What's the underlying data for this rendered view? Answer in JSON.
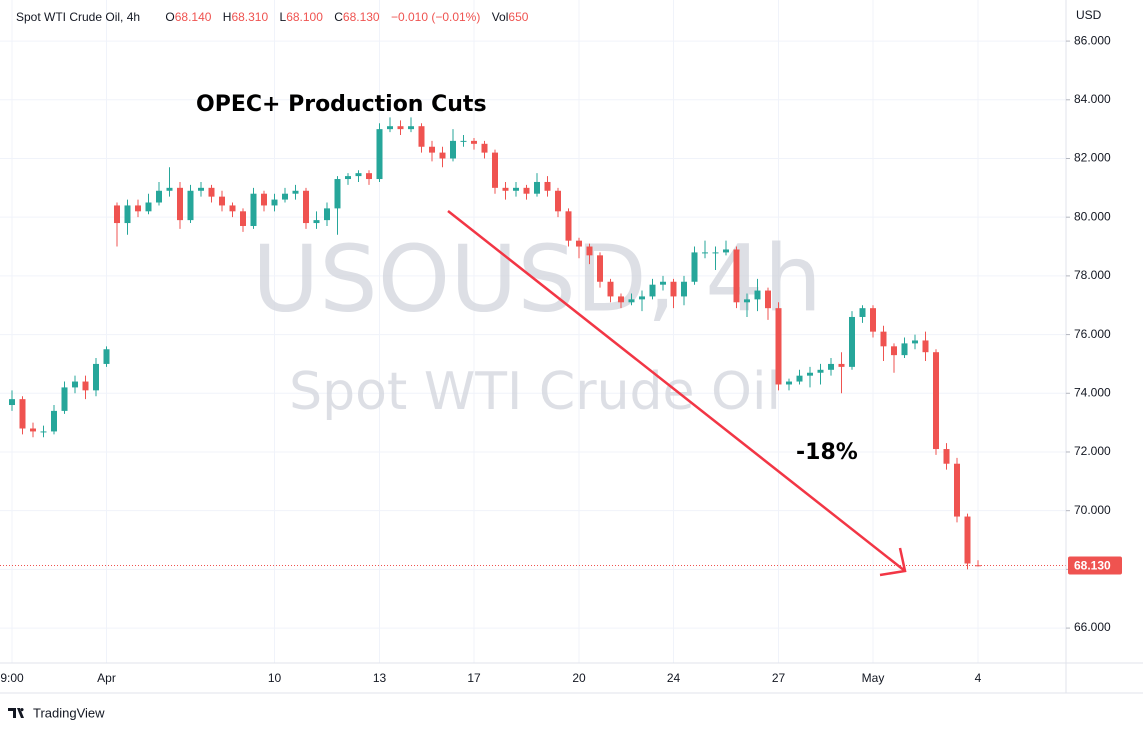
{
  "chart_data": {
    "type": "candlestick",
    "symbol_title": "Spot WTI Crude Oil, 4h",
    "ohlc_legend": [
      {
        "key": "O",
        "value": "68.140"
      },
      {
        "key": "H",
        "value": "68.310"
      },
      {
        "key": "L",
        "value": "68.100"
      },
      {
        "key": "C",
        "value": "68.130"
      }
    ],
    "change": "−0.010 (−0.01%)",
    "volume": {
      "key": "Vol",
      "value": "650"
    },
    "currency": "USD",
    "watermark": [
      "USOUSD, 4h",
      "Spot WTI Crude Oil"
    ],
    "annotations": [
      "OPEC+ Production Cuts",
      "-18%"
    ],
    "branding": "TradingView",
    "up_color": "#26a69a",
    "down_color": "#ef5350",
    "grid": true,
    "ylim": [
      64.81,
      87.4
    ],
    "yticks": [
      {
        "value": 66,
        "label": "66.000"
      },
      {
        "value": 68,
        "label": "68.000"
      },
      {
        "value": 70,
        "label": "70.000"
      },
      {
        "value": 72,
        "label": "72.000"
      },
      {
        "value": 74,
        "label": "74.000"
      },
      {
        "value": 76,
        "label": "76.000"
      },
      {
        "value": 78,
        "label": "78.000"
      },
      {
        "value": 80,
        "label": "80.000"
      },
      {
        "value": 82,
        "label": "82.000"
      },
      {
        "value": 84,
        "label": "84.000"
      },
      {
        "value": 86,
        "label": "86.000"
      }
    ],
    "last_price": {
      "value": 68.13,
      "label": "68.130"
    },
    "categories": [
      "9:00",
      null,
      null,
      null,
      null,
      null,
      null,
      null,
      null,
      "Apr",
      null,
      null,
      null,
      null,
      null,
      null,
      null,
      null,
      null,
      null,
      null,
      null,
      null,
      null,
      null,
      "10",
      null,
      null,
      null,
      null,
      null,
      null,
      null,
      null,
      null,
      "13",
      null,
      null,
      null,
      null,
      null,
      null,
      null,
      null,
      "17",
      null,
      null,
      null,
      null,
      null,
      null,
      null,
      null,
      null,
      "20",
      null,
      null,
      null,
      null,
      null,
      null,
      null,
      null,
      "24",
      null,
      null,
      null,
      null,
      null,
      null,
      null,
      null,
      null,
      "27",
      null,
      null,
      null,
      null,
      null,
      null,
      null,
      null,
      "May",
      null,
      null,
      null,
      null,
      null,
      null,
      null,
      null,
      null,
      "4"
    ],
    "ohlc": [
      [
        73.6,
        74.1,
        73.4,
        73.8
      ],
      [
        73.8,
        73.9,
        72.6,
        72.8
      ],
      [
        72.8,
        73.0,
        72.5,
        72.7
      ],
      [
        72.7,
        72.9,
        72.5,
        72.7
      ],
      [
        72.7,
        73.6,
        72.6,
        73.4
      ],
      [
        73.4,
        74.4,
        73.3,
        74.2
      ],
      [
        74.2,
        74.6,
        74.0,
        74.4
      ],
      [
        74.4,
        74.6,
        73.8,
        74.1
      ],
      [
        74.1,
        75.2,
        73.9,
        75.0
      ],
      [
        75.0,
        75.6,
        74.9,
        75.5
      ],
      [
        80.4,
        80.5,
        79.0,
        79.8
      ],
      [
        79.8,
        80.6,
        79.4,
        80.4
      ],
      [
        80.4,
        80.6,
        80.0,
        80.2
      ],
      [
        80.2,
        80.8,
        80.1,
        80.5
      ],
      [
        80.5,
        81.2,
        80.4,
        80.9
      ],
      [
        80.9,
        81.7,
        80.7,
        81.0
      ],
      [
        81.0,
        81.2,
        79.6,
        79.9
      ],
      [
        79.9,
        81.1,
        79.8,
        80.9
      ],
      [
        80.9,
        81.2,
        80.7,
        81.0
      ],
      [
        81.0,
        81.1,
        80.5,
        80.7
      ],
      [
        80.7,
        80.9,
        80.2,
        80.4
      ],
      [
        80.4,
        80.5,
        80.0,
        80.2
      ],
      [
        80.2,
        80.3,
        79.5,
        79.7
      ],
      [
        79.7,
        81.0,
        79.6,
        80.8
      ],
      [
        80.8,
        80.9,
        80.2,
        80.4
      ],
      [
        80.4,
        80.8,
        80.2,
        80.6
      ],
      [
        80.6,
        81.0,
        80.5,
        80.8
      ],
      [
        80.8,
        81.1,
        80.6,
        80.9
      ],
      [
        80.9,
        81.0,
        79.6,
        79.8
      ],
      [
        79.8,
        80.2,
        79.6,
        79.9
      ],
      [
        79.9,
        80.5,
        79.7,
        80.3
      ],
      [
        80.3,
        81.4,
        79.4,
        81.3
      ],
      [
        81.3,
        81.5,
        81.1,
        81.4
      ],
      [
        81.4,
        81.6,
        81.2,
        81.5
      ],
      [
        81.5,
        81.6,
        81.1,
        81.3
      ],
      [
        81.3,
        83.2,
        81.2,
        83.0
      ],
      [
        83.0,
        83.4,
        82.9,
        83.1
      ],
      [
        83.1,
        83.3,
        82.8,
        83.0
      ],
      [
        83.0,
        83.4,
        82.9,
        83.1
      ],
      [
        83.1,
        83.2,
        82.2,
        82.4
      ],
      [
        82.4,
        82.6,
        81.9,
        82.2
      ],
      [
        82.2,
        82.4,
        81.7,
        82.0
      ],
      [
        82.0,
        83.0,
        81.9,
        82.6
      ],
      [
        82.6,
        82.8,
        82.4,
        82.6
      ],
      [
        82.6,
        82.7,
        82.3,
        82.5
      ],
      [
        82.5,
        82.6,
        82.0,
        82.2
      ],
      [
        82.2,
        82.3,
        80.8,
        81.0
      ],
      [
        81.0,
        81.2,
        80.6,
        80.9
      ],
      [
        80.9,
        81.2,
        80.7,
        81.0
      ],
      [
        81.0,
        81.1,
        80.6,
        80.8
      ],
      [
        80.8,
        81.5,
        80.7,
        81.2
      ],
      [
        81.2,
        81.4,
        80.7,
        80.9
      ],
      [
        80.9,
        81.0,
        80.0,
        80.2
      ],
      [
        80.2,
        80.3,
        79.0,
        79.2
      ],
      [
        79.2,
        79.3,
        78.6,
        79.0
      ],
      [
        79.0,
        79.1,
        78.4,
        78.7
      ],
      [
        78.7,
        78.8,
        77.6,
        77.8
      ],
      [
        77.8,
        77.9,
        77.1,
        77.3
      ],
      [
        77.3,
        77.4,
        76.9,
        77.1
      ],
      [
        77.1,
        77.4,
        77.0,
        77.2
      ],
      [
        77.2,
        77.5,
        76.8,
        77.3
      ],
      [
        77.3,
        77.9,
        77.2,
        77.7
      ],
      [
        77.7,
        78.0,
        77.5,
        77.8
      ],
      [
        77.8,
        77.9,
        76.9,
        77.3
      ],
      [
        77.3,
        78.0,
        77.0,
        77.8
      ],
      [
        77.8,
        79.0,
        77.7,
        78.8
      ],
      [
        78.8,
        79.2,
        78.6,
        78.8
      ],
      [
        78.8,
        79.0,
        78.2,
        78.8
      ],
      [
        78.8,
        79.2,
        78.7,
        78.9
      ],
      [
        78.9,
        79.0,
        76.9,
        77.1
      ],
      [
        77.1,
        77.4,
        76.6,
        77.2
      ],
      [
        77.2,
        77.9,
        76.8,
        77.5
      ],
      [
        77.5,
        77.6,
        76.5,
        76.9
      ],
      [
        76.9,
        77.1,
        74.1,
        74.3
      ],
      [
        74.3,
        74.5,
        74.1,
        74.4
      ],
      [
        74.4,
        74.8,
        74.3,
        74.6
      ],
      [
        74.6,
        74.9,
        74.2,
        74.7
      ],
      [
        74.7,
        75.0,
        74.3,
        74.8
      ],
      [
        74.8,
        75.2,
        74.6,
        75.0
      ],
      [
        75.0,
        75.4,
        74.0,
        74.9
      ],
      [
        74.9,
        76.8,
        74.8,
        76.6
      ],
      [
        76.6,
        77.0,
        76.4,
        76.9
      ],
      [
        76.9,
        77.0,
        75.9,
        76.1
      ],
      [
        76.1,
        76.3,
        75.1,
        75.6
      ],
      [
        75.6,
        75.7,
        74.7,
        75.3
      ],
      [
        75.3,
        75.9,
        75.2,
        75.7
      ],
      [
        75.7,
        76.0,
        75.5,
        75.8
      ],
      [
        75.8,
        76.1,
        75.1,
        75.4
      ],
      [
        75.4,
        75.5,
        71.9,
        72.1
      ],
      [
        72.1,
        72.3,
        71.4,
        71.6
      ],
      [
        71.6,
        71.8,
        69.6,
        69.8
      ],
      [
        69.8,
        69.9,
        68.0,
        68.2
      ],
      [
        68.14,
        68.31,
        68.1,
        68.13
      ]
    ]
  }
}
